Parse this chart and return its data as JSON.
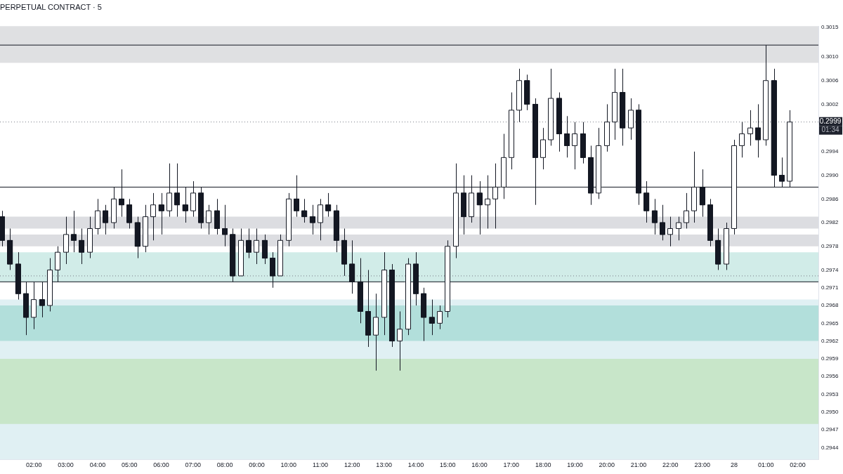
{
  "chart_data": {
    "type": "candlestick",
    "title": "PERPETUAL CONTRACT · 5",
    "color": "#131722",
    "x": [
      "--01-27T01:00",
      "--01-27T01:15",
      "--01-27T01:30",
      "--01-27T01:45",
      "--01-27T02:00",
      "--01-27T02:15",
      "--01-27T02:30",
      "--01-27T02:45",
      "--01-27T03:00",
      "--01-27T03:15",
      "--01-27T03:30",
      "--01-27T03:45",
      "--01-27T04:00",
      "--01-27T04:15",
      "--01-27T04:30",
      "--01-27T04:45",
      "--01-27T05:00",
      "--01-27T05:15",
      "--01-27T05:30",
      "--01-27T05:45",
      "--01-27T06:00",
      "--01-27T06:15",
      "--01-27T06:30",
      "--01-27T06:45",
      "--01-27T07:00",
      "--01-27T07:15",
      "--01-27T07:30",
      "--01-27T07:45",
      "--01-27T08:00",
      "--01-27T08:15",
      "--01-27T08:30",
      "--01-27T08:45",
      "--01-27T09:00",
      "--01-27T09:15",
      "--01-27T09:30",
      "--01-27T09:45",
      "--01-27T10:00",
      "--01-27T10:15",
      "--01-27T10:30",
      "--01-27T10:45",
      "--01-27T11:00",
      "--01-27T11:15",
      "--01-27T11:30",
      "--01-27T11:45",
      "--01-27T12:00",
      "--01-27T12:15",
      "--01-27T12:30",
      "--01-27T12:45",
      "--01-27T13:00",
      "--01-27T13:15",
      "--01-27T13:30",
      "--01-27T13:45",
      "--01-27T14:00",
      "--01-27T14:15",
      "--01-27T14:30",
      "--01-27T14:45",
      "--01-27T15:00",
      "--01-27T15:15",
      "--01-27T15:30",
      "--01-27T15:45",
      "--01-27T16:00",
      "--01-27T16:15",
      "--01-27T16:30",
      "--01-27T16:45",
      "--01-27T17:00",
      "--01-27T17:15",
      "--01-27T17:30",
      "--01-27T17:45",
      "--01-27T18:00",
      "--01-27T18:15",
      "--01-27T18:30",
      "--01-27T18:45",
      "--01-27T19:00",
      "--01-27T19:15",
      "--01-27T19:30",
      "--01-27T19:45",
      "--01-27T20:00",
      "--01-27T20:15",
      "--01-27T20:30",
      "--01-27T20:45",
      "--01-27T21:00",
      "--01-27T21:15",
      "--01-27T21:30",
      "--01-27T21:45",
      "--01-27T22:00",
      "--01-27T22:15",
      "--01-27T22:30",
      "--01-27T22:45",
      "--01-27T23:00",
      "--01-27T23:15",
      "--01-27T23:30",
      "--01-27T23:45",
      "--01-28T00:00",
      "--01-28T00:15",
      "--01-28T00:30",
      "--01-28T00:45",
      "--01-28T01:00",
      "--01-28T01:15",
      "--01-28T01:30",
      "--01-28T01:45"
    ],
    "ohlc": [
      [
        0.2983,
        0.2984,
        0.2978,
        0.2979
      ],
      [
        0.2979,
        0.2981,
        0.2974,
        0.2975
      ],
      [
        0.2975,
        0.2977,
        0.2969,
        0.297
      ],
      [
        0.297,
        0.2972,
        0.2963,
        0.2966
      ],
      [
        0.2966,
        0.2972,
        0.2964,
        0.2969
      ],
      [
        0.2969,
        0.2972,
        0.2966,
        0.2968
      ],
      [
        0.2968,
        0.2976,
        0.2967,
        0.2974
      ],
      [
        0.2974,
        0.2978,
        0.2972,
        0.2977
      ],
      [
        0.2977,
        0.2983,
        0.2975,
        0.298
      ],
      [
        0.298,
        0.2984,
        0.2977,
        0.2979
      ],
      [
        0.2979,
        0.2981,
        0.2975,
        0.2977
      ],
      [
        0.2977,
        0.2983,
        0.2976,
        0.2981
      ],
      [
        0.2981,
        0.2986,
        0.298,
        0.2984
      ],
      [
        0.2984,
        0.2985,
        0.298,
        0.2982
      ],
      [
        0.2982,
        0.2988,
        0.2981,
        0.2986
      ],
      [
        0.2986,
        0.2991,
        0.2983,
        0.2985
      ],
      [
        0.2985,
        0.2986,
        0.2981,
        0.2982
      ],
      [
        0.2982,
        0.2983,
        0.2976,
        0.2978
      ],
      [
        0.2978,
        0.2985,
        0.2977,
        0.2983
      ],
      [
        0.2983,
        0.2987,
        0.2979,
        0.2985
      ],
      [
        0.2985,
        0.2987,
        0.298,
        0.2984
      ],
      [
        0.2984,
        0.2992,
        0.2983,
        0.2987
      ],
      [
        0.2987,
        0.2992,
        0.2983,
        0.2985
      ],
      [
        0.2985,
        0.2988,
        0.2982,
        0.2984
      ],
      [
        0.2984,
        0.2989,
        0.2983,
        0.2987
      ],
      [
        0.2987,
        0.2988,
        0.2981,
        0.2982
      ],
      [
        0.2982,
        0.2985,
        0.298,
        0.2984
      ],
      [
        0.2984,
        0.2986,
        0.298,
        0.2981
      ],
      [
        0.2981,
        0.2985,
        0.2978,
        0.298
      ],
      [
        0.298,
        0.2981,
        0.2972,
        0.2973
      ],
      [
        0.2973,
        0.2981,
        0.2973,
        0.2979
      ],
      [
        0.2979,
        0.2981,
        0.2976,
        0.2977
      ],
      [
        0.2977,
        0.2981,
        0.2975,
        0.2979
      ],
      [
        0.2979,
        0.298,
        0.2975,
        0.2976
      ],
      [
        0.2976,
        0.2977,
        0.2971,
        0.2973
      ],
      [
        0.2973,
        0.298,
        0.2973,
        0.2979
      ],
      [
        0.2979,
        0.2987,
        0.2978,
        0.2986
      ],
      [
        0.2986,
        0.299,
        0.2983,
        0.2984
      ],
      [
        0.2984,
        0.2986,
        0.2982,
        0.2983
      ],
      [
        0.2983,
        0.2985,
        0.298,
        0.2982
      ],
      [
        0.2982,
        0.2986,
        0.2979,
        0.2985
      ],
      [
        0.2985,
        0.2987,
        0.2983,
        0.2984
      ],
      [
        0.2984,
        0.2985,
        0.2977,
        0.2979
      ],
      [
        0.2979,
        0.2981,
        0.2973,
        0.2975
      ],
      [
        0.2975,
        0.2979,
        0.297,
        0.2972
      ],
      [
        0.2972,
        0.2976,
        0.2965,
        0.2967
      ],
      [
        0.2967,
        0.2974,
        0.2961,
        0.2963
      ],
      [
        0.2963,
        0.297,
        0.2957,
        0.2966
      ],
      [
        0.2966,
        0.2977,
        0.2963,
        0.2974
      ],
      [
        0.2974,
        0.2975,
        0.2961,
        0.2962
      ],
      [
        0.2962,
        0.2967,
        0.2957,
        0.2964
      ],
      [
        0.2964,
        0.2976,
        0.2963,
        0.2975
      ],
      [
        0.2975,
        0.2977,
        0.2968,
        0.297
      ],
      [
        0.297,
        0.2971,
        0.2962,
        0.2966
      ],
      [
        0.2966,
        0.2969,
        0.2963,
        0.2965
      ],
      [
        0.2965,
        0.2968,
        0.2964,
        0.2967
      ],
      [
        0.2967,
        0.2979,
        0.2966,
        0.2978
      ],
      [
        0.2978,
        0.2992,
        0.2976,
        0.2987
      ],
      [
        0.2987,
        0.299,
        0.298,
        0.2983
      ],
      [
        0.2983,
        0.299,
        0.2982,
        0.2987
      ],
      [
        0.2987,
        0.2989,
        0.298,
        0.2985
      ],
      [
        0.2985,
        0.299,
        0.2981,
        0.2986
      ],
      [
        0.2986,
        0.2992,
        0.2981,
        0.2988
      ],
      [
        0.2988,
        0.2997,
        0.2986,
        0.2993
      ],
      [
        0.2993,
        0.3004,
        0.2991,
        0.3001
      ],
      [
        0.3001,
        0.3008,
        0.2999,
        0.3006
      ],
      [
        0.3006,
        0.3007,
        0.3001,
        0.3002
      ],
      [
        0.3002,
        0.3003,
        0.2985,
        0.2993
      ],
      [
        0.2993,
        0.2998,
        0.2991,
        0.2996
      ],
      [
        0.2996,
        0.3008,
        0.2995,
        0.3003
      ],
      [
        0.3003,
        0.3004,
        0.2994,
        0.2997
      ],
      [
        0.2997,
        0.3,
        0.2993,
        0.2995
      ],
      [
        0.2995,
        0.2999,
        0.2991,
        0.2997
      ],
      [
        0.2997,
        0.2999,
        0.2992,
        0.2993
      ],
      [
        0.2993,
        0.2995,
        0.2985,
        0.2987
      ],
      [
        0.2987,
        0.2998,
        0.2986,
        0.2995
      ],
      [
        0.2995,
        0.3002,
        0.2994,
        0.2999
      ],
      [
        0.2999,
        0.3008,
        0.2996,
        0.3004
      ],
      [
        0.3004,
        0.3008,
        0.2995,
        0.2998
      ],
      [
        0.2998,
        0.3003,
        0.2996,
        0.3001
      ],
      [
        0.3001,
        0.3002,
        0.2985,
        0.2987
      ],
      [
        0.2987,
        0.2989,
        0.2982,
        0.2984
      ],
      [
        0.2984,
        0.2986,
        0.298,
        0.2982
      ],
      [
        0.2982,
        0.2985,
        0.2979,
        0.298
      ],
      [
        0.298,
        0.2983,
        0.2978,
        0.2981
      ],
      [
        0.2981,
        0.2983,
        0.2979,
        0.2982
      ],
      [
        0.2982,
        0.2987,
        0.2981,
        0.2984
      ],
      [
        0.2984,
        0.2994,
        0.2982,
        0.2988
      ],
      [
        0.2988,
        0.2991,
        0.2983,
        0.2985
      ],
      [
        0.2985,
        0.2986,
        0.2978,
        0.2979
      ],
      [
        0.2979,
        0.2981,
        0.2974,
        0.2975
      ],
      [
        0.2975,
        0.2982,
        0.2974,
        0.2981
      ],
      [
        0.2981,
        0.2996,
        0.298,
        0.2995
      ],
      [
        0.2995,
        0.2999,
        0.2993,
        0.2997
      ],
      [
        0.2997,
        0.3001,
        0.2995,
        0.2998
      ],
      [
        0.2998,
        0.3002,
        0.2993,
        0.2996
      ],
      [
        0.2996,
        0.3012,
        0.2995,
        0.3006
      ],
      [
        0.3006,
        0.3008,
        0.2988,
        0.299
      ],
      [
        0.299,
        0.2993,
        0.2988,
        0.2989
      ],
      [
        0.2989,
        0.3001,
        0.2988,
        0.2999
      ]
    ],
    "colors": [
      "#131722",
      "#131722",
      "#131722",
      "#131722",
      "#ffffff",
      "#131722",
      "#ffffff",
      "#ffffff",
      "#ffffff",
      "#131722",
      "#131722",
      "#ffffff",
      "#ffffff",
      "#131722",
      "#ffffff",
      "#131722",
      "#131722",
      "#131722",
      "#ffffff",
      "#ffffff",
      "#131722",
      "#ffffff",
      "#131722",
      "#131722",
      "#ffffff",
      "#131722",
      "#ffffff",
      "#131722",
      "#131722",
      "#131722",
      "#ffffff",
      "#131722",
      "#ffffff",
      "#131722",
      "#131722",
      "#ffffff",
      "#ffffff",
      "#131722",
      "#131722",
      "#131722",
      "#ffffff",
      "#131722",
      "#131722",
      "#131722",
      "#131722",
      "#131722",
      "#131722",
      "#ffffff",
      "#ffffff",
      "#131722",
      "#ffffff",
      "#ffffff",
      "#131722",
      "#131722",
      "#131722",
      "#ffffff",
      "#ffffff",
      "#ffffff",
      "#131722",
      "#ffffff",
      "#131722",
      "#ffffff",
      "#ffffff",
      "#ffffff",
      "#ffffff",
      "#ffffff",
      "#131722",
      "#131722",
      "#ffffff",
      "#ffffff",
      "#131722",
      "#131722",
      "#ffffff",
      "#131722",
      "#131722",
      "#ffffff",
      "#ffffff",
      "#ffffff",
      "#131722",
      "#ffffff",
      "#131722",
      "#131722",
      "#131722",
      "#131722",
      "#ffffff",
      "#ffffff",
      "#ffffff",
      "#ffffff",
      "#131722",
      "#131722",
      "#131722",
      "#ffffff",
      "#ffffff",
      "#ffffff",
      "#ffffff",
      "#131722",
      "#ffffff",
      "#131722",
      "#131722",
      "#ffffff"
    ],
    "xlim": [
      "--01-27T00:56",
      "--01-28T02:39"
    ],
    "xticks": [
      {
        "value": "--01-27T02:00",
        "label": "02:00"
      },
      {
        "value": "--01-27T03:00",
        "label": "03:00"
      },
      {
        "value": "--01-27T04:00",
        "label": "04:00"
      },
      {
        "value": "--01-27T05:00",
        "label": "05:00"
      },
      {
        "value": "--01-27T06:00",
        "label": "06:00"
      },
      {
        "value": "--01-27T07:00",
        "label": "07:00"
      },
      {
        "value": "--01-27T08:00",
        "label": "08:00"
      },
      {
        "value": "--01-27T09:00",
        "label": "09:00"
      },
      {
        "value": "--01-27T10:00",
        "label": "10:00"
      },
      {
        "value": "--01-27T11:00",
        "label": "11:00"
      },
      {
        "value": "--01-27T12:00",
        "label": "12:00"
      },
      {
        "value": "--01-27T13:00",
        "label": "13:00"
      },
      {
        "value": "--01-27T14:00",
        "label": "14:00"
      },
      {
        "value": "--01-27T15:00",
        "label": "15:00"
      },
      {
        "value": "--01-27T16:00",
        "label": "16:00"
      },
      {
        "value": "--01-27T17:00",
        "label": "17:00"
      },
      {
        "value": "--01-27T18:00",
        "label": "18:00"
      },
      {
        "value": "--01-27T19:00",
        "label": "19:00"
      },
      {
        "value": "--01-27T20:00",
        "label": "20:00"
      },
      {
        "value": "--01-27T21:00",
        "label": "21:00"
      },
      {
        "value": "--01-27T22:00",
        "label": "22:00"
      },
      {
        "value": "--01-27T23:00",
        "label": "23:00"
      },
      {
        "value": "--01-28T00:00",
        "label": "28"
      },
      {
        "value": "--01-28T01:00",
        "label": "01:00"
      },
      {
        "value": "--01-28T02:00",
        "label": "02:00"
      }
    ],
    "ylim": [
      0.2942,
      0.30152
    ],
    "yticks": [
      0.2944,
      0.2947,
      {
        "value": 0.295,
        "label": "0.2950"
      },
      0.2953,
      0.2956,
      0.2959,
      0.2962,
      0.2965,
      0.2968,
      0.2971,
      0.2974,
      0.2978,
      0.2982,
      0.2986,
      {
        "value": 0.299,
        "label": "0.2990"
      },
      0.2994,
      0.3002,
      0.3006,
      {
        "value": 0.301,
        "label": "0.3010"
      },
      0.3015
    ],
    "bands": [
      {
        "axis": "y",
        "from": 0.2942,
        "to": 0.2969,
        "color": "#e0f0f3"
      },
      {
        "axis": "y",
        "from": 0.2962,
        "to": 0.2968,
        "color": "#b2dfdb"
      },
      {
        "axis": "y",
        "from": 0.2948,
        "to": 0.2959,
        "color": "#c8e6c9"
      },
      {
        "axis": "y",
        "from": 0.2972,
        "to": 0.2977,
        "color": "#d1ece8"
      },
      {
        "axis": "y",
        "from": 0.2981,
        "to": 0.2983,
        "color": "#dcdde1"
      },
      {
        "axis": "y",
        "from": 0.2978,
        "to": 0.298,
        "color": "#dcdde1"
      },
      {
        "axis": "y",
        "from": 0.3009,
        "to": 0.30152,
        "color": "#dfe0e2"
      }
    ],
    "ref_lines": [
      {
        "axis": "y",
        "value": 0.3012,
        "color": "#131722",
        "line_style": "solid"
      },
      {
        "axis": "y",
        "value": 0.2988,
        "color": "#131722",
        "line_style": "solid"
      },
      {
        "axis": "y",
        "value": 0.2972,
        "color": "#131722",
        "line_style": "solid"
      },
      {
        "axis": "y",
        "value": 0.2973,
        "color": "#787b86",
        "line_style": "dotted"
      },
      {
        "axis": "y",
        "value": 0.2999,
        "label": "0.2999",
        "color": "#787b86",
        "line_style": "dotted"
      }
    ],
    "annotations": [
      {
        "text": "01:34",
        "y": 0.2999
      }
    ]
  }
}
